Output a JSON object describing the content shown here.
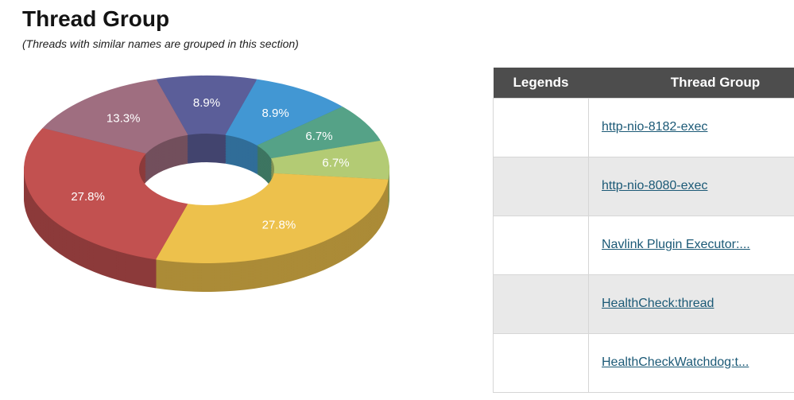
{
  "page": {
    "title": "Thread Group",
    "subtitle": "(Threads with similar names are grouped in this section)"
  },
  "chart_data": {
    "type": "pie",
    "subtype": "3d-donut",
    "unit": "%",
    "legend_position": "right-table",
    "percent_labels_shown": true,
    "slices": [
      {
        "label": "HealthCheck:thread",
        "value": 8.9,
        "color": "#5b5e99"
      },
      {
        "label": "HealthCheckWatchdog:t...",
        "value": 8.9,
        "color": "#4297d3"
      },
      {
        "label": "",
        "value": 6.7,
        "color": "#55a287"
      },
      {
        "label": "",
        "value": 6.7,
        "color": "#b3cb74"
      },
      {
        "label": "http-nio-8182-exec",
        "value": 27.8,
        "color": "#edc14c"
      },
      {
        "label": "http-nio-8080-exec",
        "value": 27.8,
        "color": "#c25150"
      },
      {
        "label": "Navlink Plugin Executor:...",
        "value": 13.3,
        "color": "#9f6e80"
      }
    ]
  },
  "table": {
    "headers": [
      "Legends",
      "Thread Group"
    ],
    "rows": [
      {
        "color": "#edc14c",
        "label": "http-nio-8182-exec"
      },
      {
        "color": "#c25150",
        "label": "http-nio-8080-exec"
      },
      {
        "color": "#9f6e80",
        "label": "Navlink Plugin Executor:..."
      },
      {
        "color": "#5b5e99",
        "label": "HealthCheck:thread"
      },
      {
        "color": "#4297d3",
        "label": "HealthCheckWatchdog:t..."
      }
    ]
  }
}
